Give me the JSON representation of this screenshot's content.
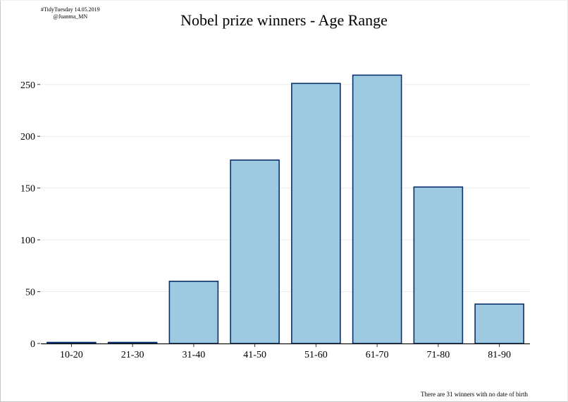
{
  "credit": {
    "line1": "#TidyTuesday 14.05.2019",
    "line2": "@Juanma_MN"
  },
  "note": "There are 31 winners with no date of birth",
  "colors": {
    "bar_fill": "#9ecae1",
    "bar_stroke": "#08306b",
    "grid": "#ebebeb"
  },
  "chart_data": {
    "type": "bar",
    "title": "Nobel prize winners - Age Range",
    "xlabel": "",
    "ylabel": "",
    "categories": [
      "10-20",
      "21-30",
      "31-40",
      "41-50",
      "51-60",
      "61-70",
      "71-80",
      "81-90"
    ],
    "values": [
      1,
      1,
      60,
      177,
      251,
      259,
      151,
      38
    ],
    "ylim": [
      0,
      270
    ],
    "yticks": [
      0,
      50,
      100,
      150,
      200,
      250
    ],
    "grid": "horizontal",
    "legend": "none"
  }
}
